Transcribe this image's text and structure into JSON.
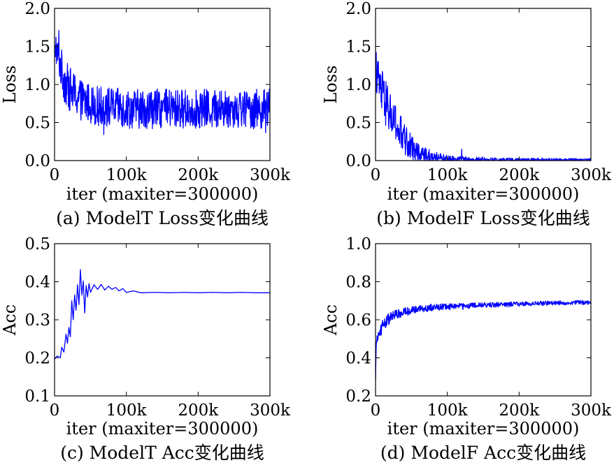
{
  "figure": {
    "panels": [
      "a",
      "b",
      "c",
      "d"
    ]
  },
  "chart_data": [
    {
      "id": "a",
      "type": "line",
      "title": "",
      "caption": "(a) ModelT Loss变化曲线",
      "xlabel": "iter (maxiter=300000)",
      "ylabel": "Loss",
      "xlim": [
        0,
        300000
      ],
      "ylim": [
        0.0,
        2.0
      ],
      "xticks": [
        0,
        100000,
        200000,
        300000
      ],
      "xtick_labels": [
        "0",
        "100k",
        "200k",
        "300k"
      ],
      "yticks": [
        0.0,
        0.5,
        1.0,
        1.5,
        2.0
      ],
      "ytick_labels": [
        "0.0",
        "0.5",
        "1.0",
        "1.5",
        "2.0"
      ],
      "line_color": "#0000ff",
      "series": [
        {
          "name": "ModelT Loss",
          "noisy": true,
          "x": [
            0,
            3000,
            6000,
            10000,
            15000,
            20000,
            30000,
            40000,
            50000,
            60000,
            80000,
            100000,
            150000,
            200000,
            250000,
            300000
          ],
          "mean": [
            1.45,
            1.42,
            1.35,
            1.18,
            1.02,
            0.95,
            0.85,
            0.78,
            0.75,
            0.72,
            0.7,
            0.68,
            0.68,
            0.68,
            0.68,
            0.68
          ],
          "spread": [
            0.1,
            0.18,
            0.25,
            0.28,
            0.3,
            0.3,
            0.28,
            0.27,
            0.26,
            0.26,
            0.26,
            0.26,
            0.26,
            0.26,
            0.26,
            0.26
          ],
          "peaks": [
            {
              "x": 6000,
              "y": 1.71
            },
            {
              "x": 2000,
              "y": 1.62
            }
          ]
        }
      ]
    },
    {
      "id": "b",
      "type": "line",
      "title": "",
      "caption": "(b) ModelF Loss变化曲线",
      "xlabel": "iter (maxiter=300000)",
      "ylabel": "Loss",
      "xlim": [
        0,
        300000
      ],
      "ylim": [
        0.0,
        2.0
      ],
      "xticks": [
        0,
        100000,
        200000,
        300000
      ],
      "xtick_labels": [
        "0",
        "100k",
        "200k",
        "300k"
      ],
      "yticks": [
        0.0,
        0.5,
        1.0,
        1.5,
        2.0
      ],
      "ytick_labels": [
        "0.0",
        "0.5",
        "1.0",
        "1.5",
        "2.0"
      ],
      "line_color": "#0000ff",
      "series": [
        {
          "name": "ModelF Loss",
          "noisy": true,
          "x": [
            0,
            5000,
            10000,
            20000,
            30000,
            40000,
            50000,
            60000,
            80000,
            100000,
            150000,
            200000,
            250000,
            300000
          ],
          "mean": [
            1.2,
            1.0,
            0.85,
            0.62,
            0.42,
            0.28,
            0.18,
            0.1,
            0.04,
            0.02,
            0.01,
            0.01,
            0.01,
            0.01
          ],
          "spread": [
            0.25,
            0.3,
            0.32,
            0.3,
            0.28,
            0.22,
            0.16,
            0.12,
            0.08,
            0.05,
            0.03,
            0.02,
            0.02,
            0.02
          ],
          "peaks": [
            {
              "x": 1000,
              "y": 1.42
            },
            {
              "x": 120000,
              "y": 0.15
            }
          ]
        }
      ]
    },
    {
      "id": "c",
      "type": "line",
      "title": "",
      "caption": "(c) ModelT Acc变化曲线",
      "xlabel": "iter (maxiter=300000)",
      "ylabel": "Acc",
      "xlim": [
        0,
        300000
      ],
      "ylim": [
        0.1,
        0.5
      ],
      "xticks": [
        0,
        100000,
        200000,
        300000
      ],
      "xtick_labels": [
        "0",
        "100k",
        "200k",
        "300k"
      ],
      "yticks": [
        0.1,
        0.2,
        0.3,
        0.4,
        0.5
      ],
      "ytick_labels": [
        "0.1",
        "0.2",
        "0.3",
        "0.4",
        "0.5"
      ],
      "line_color": "#0000ff",
      "series": [
        {
          "name": "ModelT Acc",
          "noisy": false,
          "x": [
            0,
            4000,
            8000,
            10000,
            13000,
            16000,
            18000,
            20000,
            22000,
            24000,
            26000,
            28000,
            30000,
            32000,
            34000,
            36000,
            38000,
            40000,
            42000,
            44000,
            46000,
            48000,
            50000,
            55000,
            60000,
            65000,
            70000,
            75000,
            80000,
            85000,
            90000,
            95000,
            100000,
            110000,
            120000,
            140000,
            160000,
            180000,
            200000,
            220000,
            240000,
            260000,
            280000,
            300000
          ],
          "y": [
            0.197,
            0.205,
            0.2,
            0.228,
            0.215,
            0.262,
            0.238,
            0.28,
            0.255,
            0.35,
            0.3,
            0.365,
            0.325,
            0.392,
            0.34,
            0.432,
            0.365,
            0.402,
            0.318,
            0.39,
            0.36,
            0.395,
            0.372,
            0.392,
            0.38,
            0.393,
            0.378,
            0.388,
            0.38,
            0.385,
            0.376,
            0.382,
            0.372,
            0.376,
            0.371,
            0.372,
            0.371,
            0.372,
            0.371,
            0.372,
            0.371,
            0.372,
            0.371,
            0.371
          ]
        }
      ]
    },
    {
      "id": "d",
      "type": "line",
      "title": "",
      "caption": "(d) ModelF Acc变化曲线",
      "xlabel": "iter (maxiter=300000)",
      "ylabel": "Acc",
      "xlim": [
        0,
        300000
      ],
      "ylim": [
        0.2,
        1.0
      ],
      "xticks": [
        0,
        100000,
        200000,
        300000
      ],
      "xtick_labels": [
        "0",
        "100k",
        "200k",
        "300k"
      ],
      "yticks": [
        0.2,
        0.4,
        0.6,
        0.8,
        1.0
      ],
      "ytick_labels": [
        "0.2",
        "0.4",
        "0.6",
        "0.8",
        "1.0"
      ],
      "line_color": "#0000ff",
      "series": [
        {
          "name": "ModelF Acc",
          "noisy": true,
          "x": [
            0,
            1000,
            2000,
            5000,
            10000,
            20000,
            30000,
            50000,
            80000,
            100000,
            150000,
            200000,
            250000,
            300000
          ],
          "mean": [
            0.28,
            0.47,
            0.5,
            0.53,
            0.57,
            0.61,
            0.63,
            0.65,
            0.665,
            0.67,
            0.677,
            0.683,
            0.688,
            0.692
          ],
          "spread": [
            0.0,
            0.02,
            0.03,
            0.035,
            0.035,
            0.03,
            0.025,
            0.02,
            0.018,
            0.016,
            0.014,
            0.012,
            0.012,
            0.012
          ]
        }
      ]
    }
  ]
}
